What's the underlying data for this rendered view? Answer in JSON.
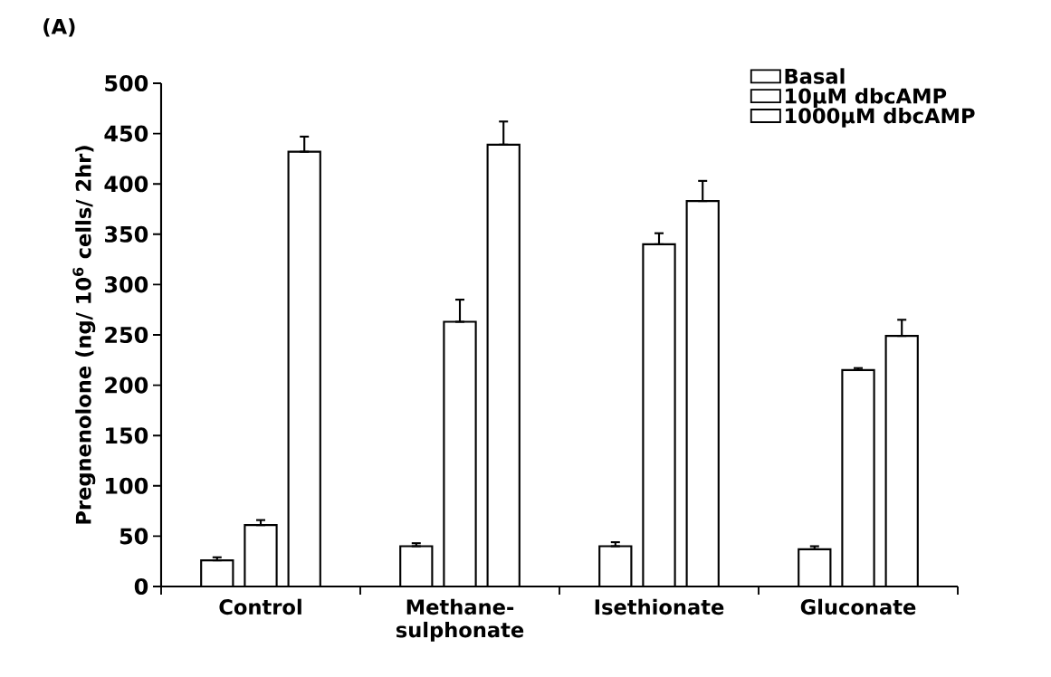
{
  "chart_data": {
    "type": "bar",
    "title": "(A)",
    "ylabel": "Pregnenolone (ng/ 10$^{6}$ cells/ 2hr)",
    "categories": [
      "Control",
      "Methane-sulphonate",
      "Isethionate",
      "Gluconate"
    ],
    "series": [
      {
        "name": "Basal",
        "color": "#000000",
        "values": [
          26,
          40,
          40,
          37
        ],
        "errors": [
          [
            26,
            29
          ],
          [
            40,
            43
          ],
          [
            40,
            44
          ],
          [
            37,
            40
          ]
        ]
      },
      {
        "name": "10μM dbcAMP",
        "color": "#000000",
        "values": [
          61,
          263,
          340,
          215
        ],
        "errors": [
          [
            61,
            66
          ],
          [
            263,
            285
          ],
          [
            340,
            351
          ],
          [
            215,
            217
          ]
        ]
      },
      {
        "name": "1000μM dbcAMP",
        "color": "#000000",
        "values": [
          432,
          439,
          383,
          249
        ],
        "errors": [
          [
            432,
            447
          ],
          [
            439,
            462
          ],
          [
            383,
            403
          ],
          [
            249,
            265
          ]
        ]
      }
    ],
    "ylim": [
      0,
      500
    ],
    "yticks": [
      0,
      50,
      100,
      150,
      200,
      250,
      300,
      350,
      400,
      450,
      500
    ],
    "grid": false,
    "legend": "top right"
  }
}
